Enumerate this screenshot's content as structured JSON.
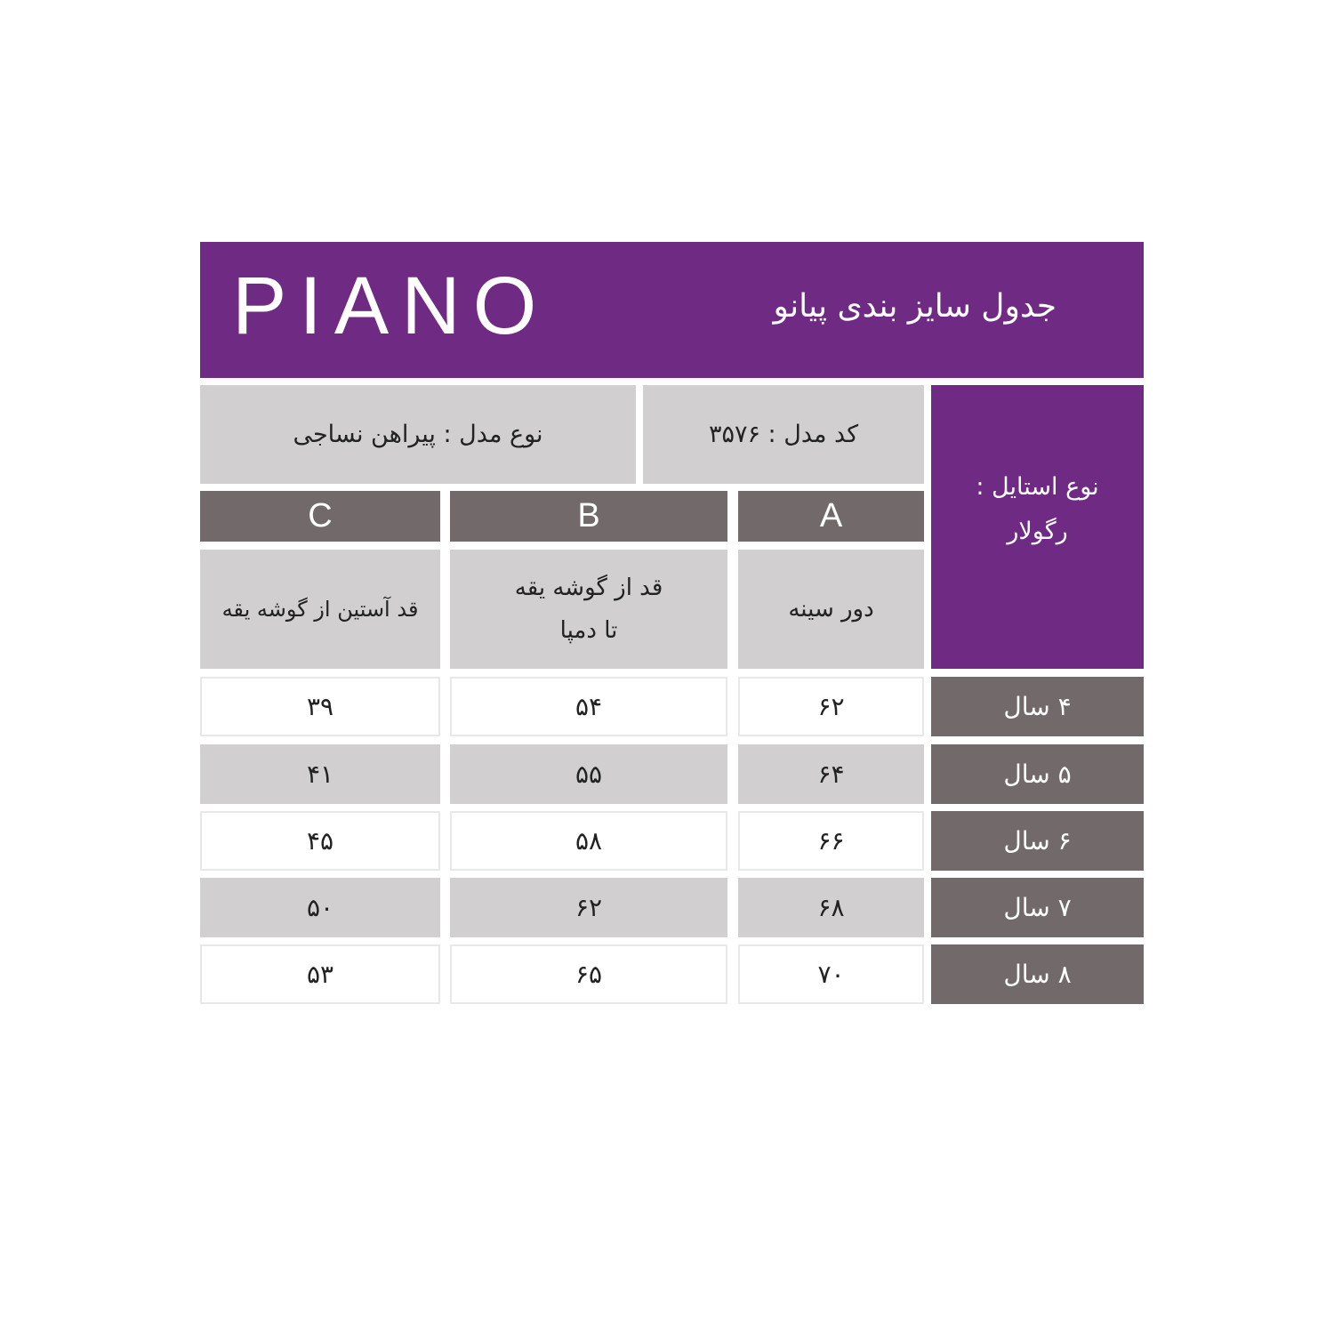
{
  "header": {
    "brand": "PIANO",
    "title": "جدول سایز بندی پیانو"
  },
  "info": {
    "model_type": "نوع مدل : پیراهن نساجی",
    "model_code": "کد مدل : ۳۵۷۶",
    "style_line1": "نوع استایل :",
    "style_line2": "رگولار"
  },
  "columns": [
    {
      "letter": "A",
      "label": "دور سینه"
    },
    {
      "letter": "B",
      "label_line1": "قد از گوشه یقه",
      "label_line2": "تا دمپا"
    },
    {
      "letter": "C",
      "label": "قد آستین از گوشه یقه"
    }
  ],
  "rows": [
    {
      "age": "۴ سال",
      "a": "۶۲",
      "b": "۵۴",
      "c": "۳۹"
    },
    {
      "age": "۵ سال",
      "a": "۶۴",
      "b": "۵۵",
      "c": "۴۱"
    },
    {
      "age": "۶ سال",
      "a": "۶۶",
      "b": "۵۸",
      "c": "۴۵"
    },
    {
      "age": "۷ سال",
      "a": "۶۸",
      "b": "۶۲",
      "c": "۵۰"
    },
    {
      "age": "۸ سال",
      "a": "۷۰",
      "b": "۶۵",
      "c": "۵۳"
    }
  ],
  "colors": {
    "purple": "#6f2a84",
    "dark_gray": "#726a6a",
    "light_gray": "#d1cfd0"
  }
}
